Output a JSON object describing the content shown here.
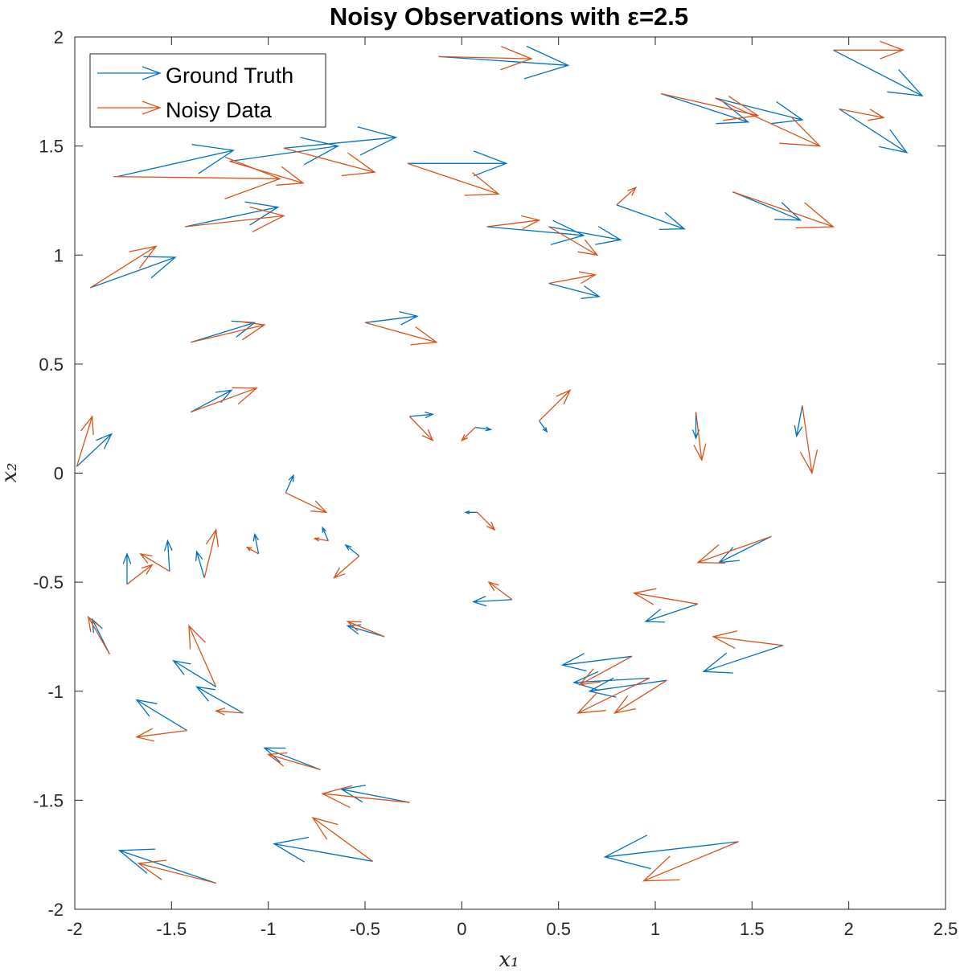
{
  "chart_data": {
    "type": "quiver",
    "title": "Noisy Observations with ε=2.5",
    "xlabel": "x₁",
    "ylabel": "x₂",
    "xlim": [
      -2,
      2.5
    ],
    "ylim": [
      -2,
      2
    ],
    "xticks": [
      -2,
      -1.5,
      -1,
      -0.5,
      0,
      0.5,
      1,
      1.5,
      2,
      2.5
    ],
    "yticks": [
      -2,
      -1.5,
      -1,
      -0.5,
      0,
      0.5,
      1,
      1.5,
      2
    ],
    "xtick_labels": [
      "-2",
      "-1.5",
      "-1",
      "-0.5",
      "0",
      "0.5",
      "1",
      "1.5",
      "2",
      "2.5"
    ],
    "ytick_labels": [
      "-2",
      "-1.5",
      "-1",
      "-0.5",
      "0",
      "0.5",
      "1",
      "1.5",
      "2"
    ],
    "grid": false,
    "legend_position": "top-left",
    "series": [
      {
        "name": "Ground Truth",
        "color": "#0072BD",
        "arrows": [
          [
            -1.78,
            1.36,
            0.6,
            0.12
          ],
          [
            -1.2,
            1.43,
            0.56,
            0.07
          ],
          [
            -0.92,
            1.49,
            0.58,
            0.05
          ],
          [
            -0.28,
            1.42,
            0.51,
            0.0
          ],
          [
            -0.12,
            1.91,
            0.67,
            -0.04
          ],
          [
            1.92,
            1.94,
            0.46,
            -0.21
          ],
          [
            1.03,
            1.74,
            0.45,
            -0.13
          ],
          [
            1.31,
            1.72,
            0.45,
            -0.1
          ],
          [
            1.95,
            1.67,
            0.35,
            -0.2
          ],
          [
            -1.43,
            1.13,
            0.48,
            0.09
          ],
          [
            -1.92,
            0.85,
            0.44,
            0.14
          ],
          [
            0.13,
            1.13,
            0.5,
            -0.04
          ],
          [
            0.45,
            1.13,
            0.37,
            -0.06
          ],
          [
            0.8,
            1.23,
            0.35,
            -0.11
          ],
          [
            1.4,
            1.29,
            0.35,
            -0.13
          ],
          [
            0.45,
            0.87,
            0.26,
            -0.06
          ],
          [
            -1.4,
            0.6,
            0.33,
            0.09
          ],
          [
            -0.5,
            0.69,
            0.27,
            0.03
          ],
          [
            -1.4,
            0.28,
            0.21,
            0.1
          ],
          [
            -1.99,
            0.03,
            0.18,
            0.15
          ],
          [
            -0.27,
            0.26,
            0.12,
            0.01
          ],
          [
            0.07,
            0.21,
            0.08,
            -0.01
          ],
          [
            0.4,
            0.24,
            0.04,
            -0.05
          ],
          [
            1.21,
            0.28,
            0.0,
            -0.12
          ],
          [
            1.76,
            0.31,
            -0.03,
            -0.14
          ],
          [
            -0.91,
            -0.09,
            0.04,
            0.08
          ],
          [
            0.08,
            -0.18,
            -0.06,
            0.0
          ],
          [
            -1.73,
            -0.51,
            0.0,
            0.14
          ],
          [
            -1.51,
            -0.45,
            -0.01,
            0.14
          ],
          [
            -1.33,
            -0.48,
            -0.04,
            0.12
          ],
          [
            -1.05,
            -0.37,
            -0.02,
            0.09
          ],
          [
            -0.69,
            -0.31,
            -0.03,
            0.06
          ],
          [
            -0.53,
            -0.38,
            -0.07,
            0.05
          ],
          [
            1.6,
            -0.29,
            -0.27,
            -0.12
          ],
          [
            1.22,
            -0.6,
            -0.27,
            -0.08
          ],
          [
            0.26,
            -0.58,
            -0.2,
            -0.01
          ],
          [
            -0.4,
            -0.75,
            -0.19,
            0.05
          ],
          [
            1.66,
            -0.79,
            -0.41,
            -0.12
          ],
          [
            -1.82,
            -0.83,
            -0.09,
            0.16
          ],
          [
            -1.27,
            -0.98,
            -0.22,
            0.12
          ],
          [
            -1.13,
            -1.1,
            -0.24,
            0.12
          ],
          [
            -1.42,
            -1.18,
            -0.26,
            0.14
          ],
          [
            0.88,
            -0.84,
            -0.36,
            -0.04
          ],
          [
            0.97,
            -0.94,
            -0.39,
            -0.02
          ],
          [
            1.06,
            -0.95,
            -0.4,
            -0.05
          ],
          [
            -0.73,
            -1.36,
            -0.29,
            0.1
          ],
          [
            -0.27,
            -1.51,
            -0.35,
            0.06
          ],
          [
            -0.46,
            -1.78,
            -0.51,
            0.08
          ],
          [
            -1.27,
            -1.88,
            -0.5,
            0.15
          ],
          [
            1.43,
            -1.69,
            -0.69,
            -0.07
          ]
        ]
      },
      {
        "name": "Noisy Data",
        "color": "#D95319",
        "arrows": [
          [
            -1.8,
            1.36,
            0.86,
            -0.01
          ],
          [
            -1.2,
            1.43,
            0.38,
            -0.1
          ],
          [
            -0.92,
            1.49,
            0.47,
            -0.11
          ],
          [
            -0.28,
            1.42,
            0.47,
            -0.14
          ],
          [
            -0.12,
            1.91,
            0.48,
            -0.01
          ],
          [
            1.92,
            1.94,
            0.36,
            0.0
          ],
          [
            1.03,
            1.74,
            0.5,
            -0.1
          ],
          [
            1.31,
            1.72,
            0.54,
            -0.22
          ],
          [
            1.95,
            1.67,
            0.23,
            -0.04
          ],
          [
            -1.43,
            1.13,
            0.51,
            0.05
          ],
          [
            -1.92,
            0.85,
            0.34,
            0.19
          ],
          [
            0.13,
            1.13,
            0.27,
            0.03
          ],
          [
            0.45,
            1.13,
            0.25,
            -0.13
          ],
          [
            0.8,
            1.23,
            0.1,
            0.08
          ],
          [
            1.4,
            1.29,
            0.52,
            -0.16
          ],
          [
            0.45,
            0.87,
            0.24,
            0.04
          ],
          [
            -1.4,
            0.6,
            0.38,
            0.08
          ],
          [
            -0.5,
            0.69,
            0.37,
            -0.09
          ],
          [
            -1.4,
            0.28,
            0.34,
            0.11
          ],
          [
            -1.99,
            0.03,
            0.08,
            0.23
          ],
          [
            -0.27,
            0.26,
            0.12,
            -0.11
          ],
          [
            0.07,
            0.21,
            -0.07,
            -0.06
          ],
          [
            0.4,
            0.24,
            0.16,
            0.14
          ],
          [
            1.21,
            0.28,
            0.03,
            -0.22
          ],
          [
            1.76,
            0.31,
            0.05,
            -0.31
          ],
          [
            -0.91,
            -0.09,
            0.21,
            -0.09
          ],
          [
            0.08,
            -0.18,
            0.09,
            -0.08
          ],
          [
            -1.73,
            -0.51,
            0.13,
            0.09
          ],
          [
            -1.51,
            -0.45,
            -0.15,
            0.08
          ],
          [
            -1.33,
            -0.48,
            0.06,
            0.22
          ],
          [
            -1.05,
            -0.37,
            -0.06,
            0.03
          ],
          [
            -0.69,
            -0.31,
            -0.07,
            0.01
          ],
          [
            -0.53,
            -0.38,
            -0.13,
            -0.1
          ],
          [
            1.6,
            -0.29,
            -0.38,
            -0.12
          ],
          [
            1.22,
            -0.6,
            -0.33,
            0.05
          ],
          [
            0.26,
            -0.58,
            -0.12,
            0.08
          ],
          [
            -0.4,
            -0.75,
            -0.19,
            0.07
          ],
          [
            1.66,
            -0.79,
            -0.36,
            0.04
          ],
          [
            -1.82,
            -0.83,
            -0.11,
            0.17
          ],
          [
            -1.27,
            -0.98,
            -0.14,
            0.28
          ],
          [
            -1.13,
            -1.1,
            -0.14,
            0.01
          ],
          [
            -1.42,
            -1.18,
            -0.26,
            -0.03
          ],
          [
            0.88,
            -0.84,
            -0.27,
            -0.13
          ],
          [
            0.97,
            -0.94,
            -0.37,
            -0.16
          ],
          [
            1.06,
            -0.95,
            -0.27,
            -0.15
          ],
          [
            -0.73,
            -1.36,
            -0.27,
            0.07
          ],
          [
            -0.27,
            -1.51,
            -0.45,
            0.04
          ],
          [
            -0.46,
            -1.78,
            -0.31,
            0.2
          ],
          [
            -1.27,
            -1.88,
            -0.4,
            0.09
          ],
          [
            1.43,
            -1.69,
            -0.49,
            -0.18
          ]
        ]
      }
    ]
  }
}
